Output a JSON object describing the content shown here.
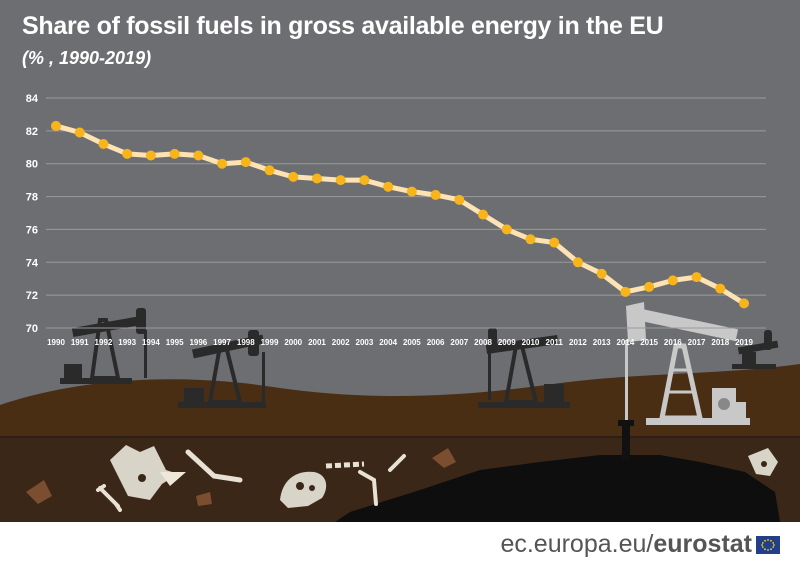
{
  "title": "Share of fossil fuels in gross available energy in the EU",
  "subtitle": "(% , 1990-2019)",
  "footer": {
    "site": "ec.europa.eu/",
    "brand": "eurostat"
  },
  "colors": {
    "background": "#6d6e71",
    "line": "#fde2b3",
    "marker": "#f7b51b",
    "grid": "#9a9a9a",
    "ground": "#4a2e14",
    "underground": "#3a2718"
  },
  "icons": [
    "oil-pump-icon",
    "dinosaur-fossil-icon",
    "eu-flag-icon"
  ],
  "chart_data": {
    "type": "line",
    "title": "Share of fossil fuels in gross available energy in the EU",
    "subtitle": "(% , 1990-2019)",
    "xlabel": "",
    "ylabel": "",
    "ylim": [
      70,
      84
    ],
    "yticks": [
      70,
      72,
      74,
      76,
      78,
      80,
      82,
      84
    ],
    "grid": true,
    "x": [
      "1990",
      "1991",
      "1992",
      "1993",
      "1994",
      "1995",
      "1996",
      "1997",
      "1998",
      "1999",
      "2000",
      "2001",
      "2002",
      "2003",
      "2004",
      "2005",
      "2006",
      "2007",
      "2008",
      "2009",
      "2010",
      "2011",
      "2012",
      "2013",
      "2014",
      "2015",
      "2016",
      "2017",
      "2018",
      "2019"
    ],
    "series": [
      {
        "values": [
          82.3,
          81.9,
          81.2,
          80.6,
          80.5,
          80.6,
          80.5,
          80.0,
          80.1,
          79.6,
          79.2,
          79.1,
          79.0,
          79.0,
          78.6,
          78.3,
          78.1,
          77.8,
          76.9,
          76.0,
          75.4,
          75.2,
          74.0,
          73.3,
          72.2,
          72.5,
          72.9,
          73.1,
          72.4,
          71.5
        ]
      }
    ]
  }
}
